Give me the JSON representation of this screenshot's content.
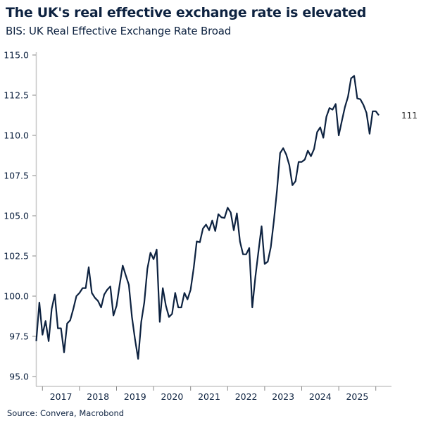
{
  "title": "The UK's real effective exchange rate is elevated",
  "subtitle": "BIS: UK Real Effective Exchange Rate Broad",
  "source": "Source: Convera, Macrobond",
  "chart_data": {
    "type": "line",
    "title": "The UK's real effective exchange rate is elevated",
    "subtitle": "BIS: UK Real Effective Exchange Rate Broad",
    "xlabel": "",
    "ylabel": "",
    "ylim": [
      95,
      115
    ],
    "y_ticks": [
      "95.0",
      "97.5",
      "100.0",
      "102.5",
      "105.0",
      "107.5",
      "110.0",
      "112.5",
      "115.0"
    ],
    "x_ticks": [
      "2017",
      "2018",
      "2019",
      "2020",
      "2021",
      "2022",
      "2023",
      "2024",
      "2025"
    ],
    "grid": false,
    "line_color": "#0d2240",
    "last_value_label": "111",
    "x": [
      "2016-11",
      "2016-12",
      "2017-01",
      "2017-02",
      "2017-03",
      "2017-04",
      "2017-05",
      "2017-06",
      "2017-07",
      "2017-08",
      "2017-09",
      "2017-10",
      "2017-11",
      "2017-12",
      "2018-01",
      "2018-02",
      "2018-03",
      "2018-04",
      "2018-05",
      "2018-06",
      "2018-07",
      "2018-08",
      "2018-09",
      "2018-10",
      "2018-11",
      "2018-12",
      "2019-01",
      "2019-02",
      "2019-03",
      "2019-04",
      "2019-05",
      "2019-06",
      "2019-07",
      "2019-08",
      "2019-09",
      "2019-10",
      "2019-11",
      "2019-12",
      "2020-01",
      "2020-02",
      "2020-03",
      "2020-04",
      "2020-05",
      "2020-06",
      "2020-07",
      "2020-08",
      "2020-09",
      "2020-10",
      "2020-11",
      "2020-12",
      "2021-01",
      "2021-02",
      "2021-03",
      "2021-04",
      "2021-05",
      "2021-06",
      "2021-07",
      "2021-08",
      "2021-09",
      "2021-10",
      "2021-11",
      "2021-12",
      "2022-01",
      "2022-02",
      "2022-03",
      "2022-04",
      "2022-05",
      "2022-06",
      "2022-07",
      "2022-08",
      "2022-09",
      "2022-10",
      "2022-11",
      "2022-12",
      "2023-01",
      "2023-02",
      "2023-03",
      "2023-04",
      "2023-05",
      "2023-06",
      "2023-07",
      "2023-08",
      "2023-09",
      "2023-10",
      "2023-11",
      "2023-12",
      "2024-01",
      "2024-02",
      "2024-03",
      "2024-04",
      "2024-05",
      "2024-06",
      "2024-07",
      "2024-08",
      "2024-09",
      "2024-10",
      "2024-11",
      "2024-12",
      "2025-01",
      "2025-02",
      "2025-03",
      "2025-04",
      "2025-05",
      "2025-06",
      "2025-07",
      "2025-08",
      "2025-09",
      "2025-10",
      "2025-11",
      "2025-12",
      "2026-01",
      "2026-02"
    ],
    "series": [
      {
        "values": [
          97.2,
          99.6,
          97.6,
          98.45,
          97.2,
          99.2,
          100.1,
          98.0,
          98.0,
          96.5,
          98.3,
          98.5,
          99.2,
          100.0,
          100.2,
          100.5,
          100.5,
          101.8,
          100.2,
          99.9,
          99.7,
          99.3,
          100.1,
          100.4,
          100.6,
          98.8,
          99.4,
          100.7,
          101.9,
          101.3,
          100.7,
          98.7,
          97.3,
          96.1,
          98.4,
          99.6,
          101.7,
          102.7,
          102.3,
          102.9,
          98.4,
          100.5,
          99.4,
          98.7,
          98.9,
          100.2,
          99.3,
          99.3,
          100.2,
          99.8,
          100.4,
          101.75,
          103.4,
          103.35,
          104.2,
          104.45,
          104.1,
          104.7,
          104.05,
          105.1,
          104.9,
          104.87,
          105.5,
          105.2,
          104.1,
          105.15,
          103.4,
          102.6,
          102.6,
          103.0,
          99.3,
          101.2,
          102.8,
          104.35,
          102.0,
          102.15,
          103.05,
          104.7,
          106.6,
          108.9,
          109.2,
          108.8,
          108.15,
          106.9,
          107.15,
          108.35,
          108.35,
          108.5,
          109.05,
          108.7,
          109.15,
          110.2,
          110.5,
          109.85,
          111.15,
          111.7,
          111.6,
          111.95,
          110.0,
          110.9,
          111.75,
          112.4,
          113.55,
          113.7,
          112.3,
          112.25,
          111.9,
          111.4,
          110.1,
          111.5,
          111.5,
          111.25
        ]
      }
    ]
  }
}
